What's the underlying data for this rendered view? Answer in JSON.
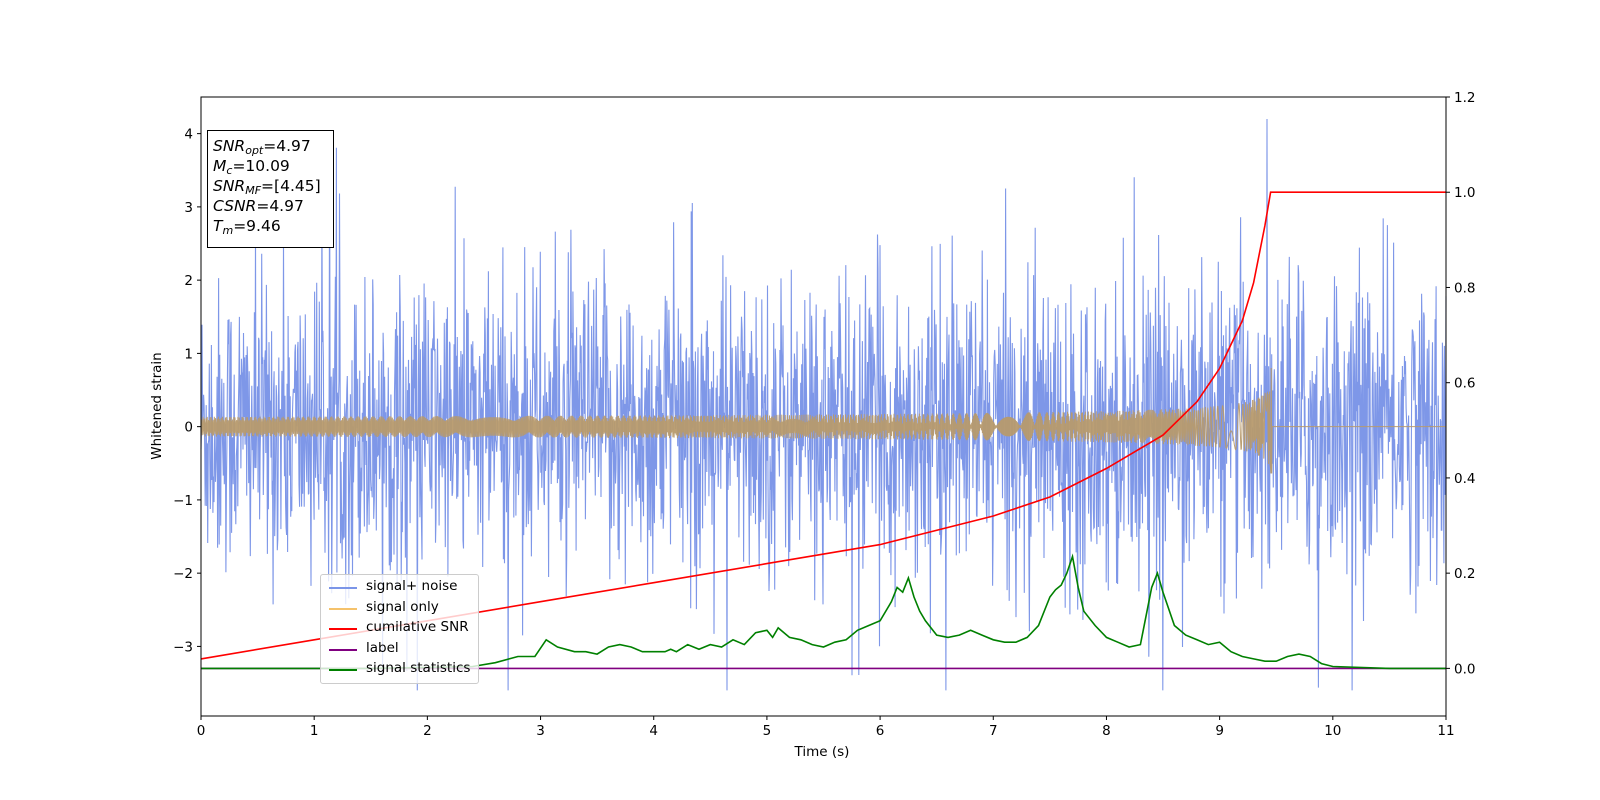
{
  "chart_data": {
    "type": "line",
    "xlabel": "Time (s)",
    "ylabel": "Whitened strain",
    "xlim": [
      0,
      11
    ],
    "ylim_left": [
      -3.95,
      4.5
    ],
    "ylim_right": [
      -0.1,
      1.2
    ],
    "x_ticks": [
      "0",
      "1",
      "2",
      "3",
      "4",
      "5",
      "6",
      "7",
      "8",
      "9",
      "10",
      "11"
    ],
    "y_left_ticks": [
      "4",
      "3",
      "2",
      "1",
      "0",
      "−1",
      "−2",
      "−3"
    ],
    "y_left_tick_values": [
      4,
      3,
      2,
      1,
      0,
      -1,
      -2,
      -3
    ],
    "y_right_ticks": [
      "1.2",
      "1.0",
      "0.8",
      "0.6",
      "0.4",
      "0.2",
      "0.0"
    ],
    "y_right_tick_values": [
      1.2,
      1.0,
      0.8,
      0.6,
      0.4,
      0.2,
      0.0
    ],
    "annotations": [
      {
        "sym": "SNR",
        "sub": "opt",
        "value": "=4.97"
      },
      {
        "sym": "M",
        "sub": "c",
        "value": "=10.09"
      },
      {
        "sym": "SNR",
        "sub": "MF",
        "value": "=[4.45]"
      },
      {
        "sym": "CSNR",
        "sub": "",
        "value": "=4.97"
      },
      {
        "sym": "T",
        "sub": "m",
        "value": "=9.46"
      }
    ],
    "legend_position": "lower-left",
    "series": [
      {
        "name": "signal+ noise",
        "color": "#7b95e8",
        "axis": "left",
        "description": "noise-dominated whitened strain, amplitude roughly within ±2.5 with spikes to about ±4"
      },
      {
        "name": "signal only",
        "color": "#f5c26b",
        "axis": "left",
        "t_merger": 9.46,
        "peak_amplitude": 0.8
      },
      {
        "name": "cumilative SNR",
        "color": "#ff0000",
        "axis": "right",
        "x": [
          0,
          1,
          2,
          3,
          4,
          5,
          6,
          7,
          7.5,
          8,
          8.5,
          8.8,
          9.0,
          9.2,
          9.3,
          9.4,
          9.45,
          9.46,
          11
        ],
        "values": [
          0.02,
          0.06,
          0.1,
          0.14,
          0.18,
          0.22,
          0.26,
          0.32,
          0.36,
          0.42,
          0.49,
          0.56,
          0.63,
          0.73,
          0.81,
          0.93,
          1.0,
          1.0,
          1.0
        ]
      },
      {
        "name": "label",
        "color": "#800080",
        "axis": "right",
        "x": [
          0,
          11
        ],
        "values": [
          0.0,
          0.0
        ]
      },
      {
        "name": "signal statistics",
        "color": "#008000",
        "axis": "right",
        "x": [
          0,
          0.5,
          1,
          1.5,
          2,
          2.4,
          2.6,
          2.8,
          2.95,
          3.05,
          3.15,
          3.3,
          3.4,
          3.5,
          3.6,
          3.7,
          3.8,
          3.9,
          4.0,
          4.1,
          4.15,
          4.2,
          4.3,
          4.4,
          4.5,
          4.6,
          4.7,
          4.8,
          4.9,
          5.0,
          5.05,
          5.1,
          5.2,
          5.3,
          5.4,
          5.5,
          5.6,
          5.7,
          5.8,
          5.9,
          6.0,
          6.1,
          6.15,
          6.2,
          6.25,
          6.3,
          6.35,
          6.4,
          6.5,
          6.6,
          6.7,
          6.8,
          6.9,
          7.0,
          7.1,
          7.2,
          7.3,
          7.4,
          7.5,
          7.55,
          7.6,
          7.65,
          7.7,
          7.75,
          7.8,
          7.9,
          8.0,
          8.1,
          8.2,
          8.3,
          8.4,
          8.45,
          8.5,
          8.6,
          8.7,
          8.8,
          8.9,
          9.0,
          9.1,
          9.2,
          9.3,
          9.4,
          9.5,
          9.6,
          9.7,
          9.8,
          9.9,
          10.0,
          10.5,
          11.0
        ],
        "values": [
          0.0,
          0.0,
          0.0,
          0.0,
          0.002,
          0.004,
          0.012,
          0.025,
          0.025,
          0.06,
          0.045,
          0.035,
          0.035,
          0.03,
          0.045,
          0.05,
          0.045,
          0.035,
          0.035,
          0.035,
          0.04,
          0.035,
          0.05,
          0.04,
          0.05,
          0.045,
          0.06,
          0.05,
          0.075,
          0.08,
          0.065,
          0.085,
          0.065,
          0.06,
          0.05,
          0.045,
          0.055,
          0.06,
          0.08,
          0.09,
          0.1,
          0.14,
          0.17,
          0.16,
          0.19,
          0.15,
          0.12,
          0.1,
          0.07,
          0.065,
          0.07,
          0.08,
          0.07,
          0.06,
          0.055,
          0.055,
          0.065,
          0.09,
          0.15,
          0.165,
          0.175,
          0.2,
          0.235,
          0.17,
          0.12,
          0.09,
          0.065,
          0.055,
          0.045,
          0.05,
          0.17,
          0.2,
          0.16,
          0.09,
          0.07,
          0.06,
          0.05,
          0.055,
          0.035,
          0.025,
          0.02,
          0.015,
          0.015,
          0.025,
          0.03,
          0.025,
          0.01,
          0.004,
          0.0,
          0.0
        ]
      }
    ]
  }
}
